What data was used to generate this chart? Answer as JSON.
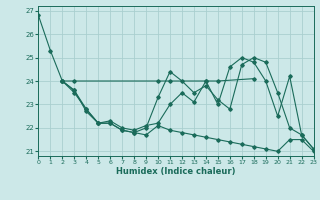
{
  "xlabel": "Humidex (Indice chaleur)",
  "bg_color": "#cce8e8",
  "line_color": "#1a6b5a",
  "grid_color": "#aacfcf",
  "xlim": [
    0,
    23
  ],
  "ylim": [
    20.8,
    27.2
  ],
  "yticks": [
    21,
    22,
    23,
    24,
    25,
    26,
    27
  ],
  "xticks": [
    0,
    1,
    2,
    3,
    4,
    5,
    6,
    7,
    8,
    9,
    10,
    11,
    12,
    13,
    14,
    15,
    16,
    17,
    18,
    19,
    20,
    21,
    22,
    23
  ],
  "lines": [
    {
      "x": [
        0,
        1,
        2,
        3,
        4,
        5,
        6,
        7,
        8,
        9,
        10,
        11,
        12,
        13,
        14,
        15,
        16,
        17,
        18,
        19,
        20,
        21,
        22,
        23
      ],
      "y": [
        26.8,
        25.3,
        24.0,
        23.5,
        22.8,
        22.2,
        22.2,
        21.9,
        21.8,
        21.7,
        22.1,
        21.9,
        21.8,
        21.7,
        21.6,
        21.5,
        21.4,
        21.3,
        21.2,
        21.1,
        21.0,
        21.5,
        21.5,
        21.0
      ]
    },
    {
      "x": [
        2,
        3,
        10,
        11,
        14,
        15,
        18
      ],
      "y": [
        24.0,
        24.0,
        24.0,
        24.0,
        24.0,
        24.0,
        24.1
      ]
    },
    {
      "x": [
        2,
        3,
        4,
        5,
        6,
        7,
        8,
        9,
        10,
        11,
        12,
        13,
        14,
        15,
        16,
        17,
        18,
        19,
        20,
        21,
        22,
        23
      ],
      "y": [
        24.0,
        23.6,
        22.7,
        22.2,
        22.2,
        21.9,
        21.8,
        22.0,
        23.3,
        24.4,
        24.0,
        23.5,
        23.8,
        23.2,
        22.8,
        24.7,
        25.0,
        24.8,
        23.5,
        22.0,
        21.7,
        21.1
      ]
    },
    {
      "x": [
        2,
        3,
        4,
        5,
        6,
        7,
        8,
        9,
        10,
        11,
        12,
        13,
        14,
        15,
        16,
        17,
        18,
        19,
        20,
        21,
        22,
        23
      ],
      "y": [
        24.0,
        23.6,
        22.8,
        22.2,
        22.3,
        22.0,
        21.9,
        22.1,
        22.2,
        23.0,
        23.5,
        23.1,
        24.0,
        23.0,
        24.6,
        25.0,
        24.8,
        24.0,
        22.5,
        24.2,
        21.7,
        21.1
      ]
    }
  ]
}
